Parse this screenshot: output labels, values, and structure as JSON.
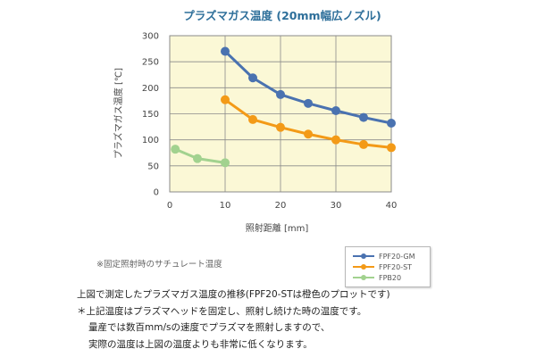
{
  "chart_data": {
    "type": "line",
    "title": "プラズマガス温度 (20mm幅広ノズル)",
    "xlabel": "照射距離 [mm]",
    "ylabel": "プラズマガス温度 [℃]",
    "xlim": [
      0,
      40
    ],
    "ylim": [
      0,
      300
    ],
    "xticks": [
      0,
      10,
      20,
      30,
      40
    ],
    "yticks": [
      0,
      50,
      100,
      150,
      200,
      250,
      300
    ],
    "grid": true,
    "legend_position": "bottom-right",
    "series": [
      {
        "name": "FPF20-GM",
        "color": "#4a72b0",
        "x": [
          10,
          15,
          20,
          25,
          30,
          35,
          40
        ],
        "values": [
          270,
          219,
          187,
          170,
          156,
          143,
          132
        ]
      },
      {
        "name": "FPF20-ST",
        "color": "#f39a17",
        "x": [
          10,
          15,
          20,
          25,
          30,
          35,
          40
        ],
        "values": [
          177,
          139,
          124,
          111,
          100,
          91,
          85
        ]
      },
      {
        "name": "FPB20",
        "color": "#a2d28f",
        "x": [
          1,
          5,
          10
        ],
        "values": [
          82,
          64,
          56
        ]
      }
    ]
  },
  "note": "※固定照射時のサチュレート温度",
  "description": [
    "上図で測定したプラズマガス温度の推移(FPF20-STは橙色のプロットです)",
    "＊上記温度はプラズマヘッドを固定し、照射し続けた時の温度です。",
    "量産では数百mm/sの速度でプラズマを照射しますので、",
    "実際の温度は上図の温度よりも非常に低くなります。"
  ],
  "colors": {
    "plot_background": "#fbf8d6",
    "grid": "#8a8a8a"
  }
}
